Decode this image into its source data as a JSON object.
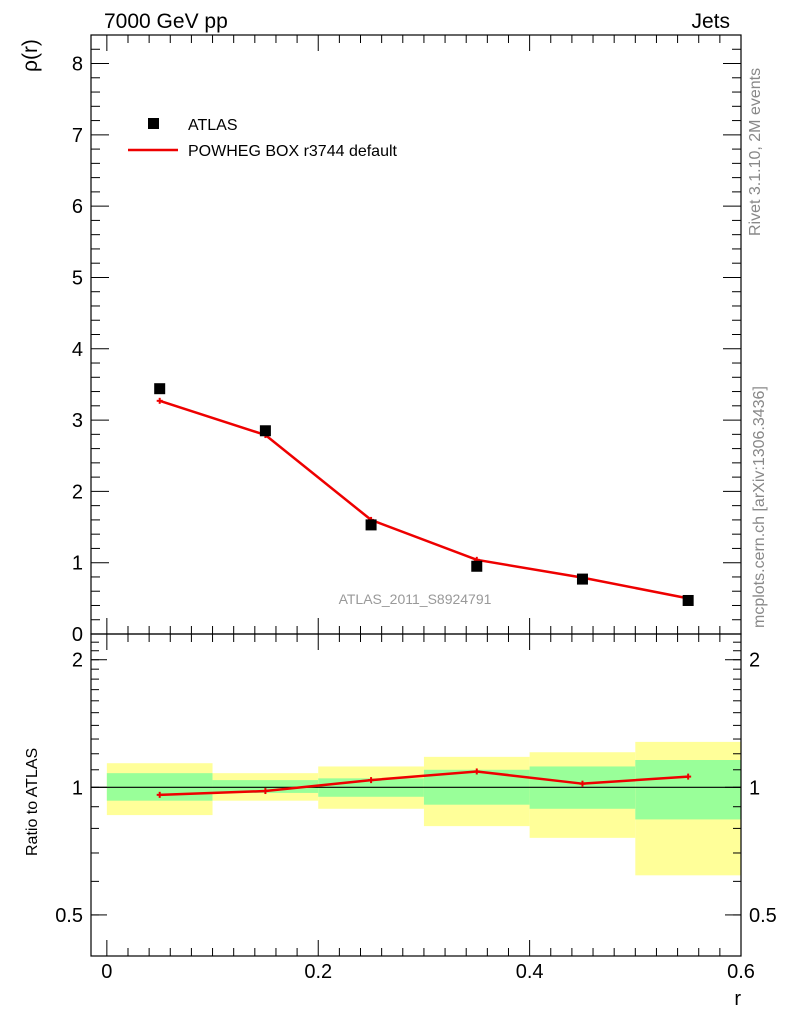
{
  "header": {
    "left_title": "7000 GeV pp",
    "right_title": "Jets"
  },
  "side_text": {
    "rivet": "Rivet 3.1.10,  2M events",
    "mcplots": "mcplots.cern.ch [arXiv:1306.3436]"
  },
  "analysis_label": "ATLAS_2011_S8924791",
  "chart_data": [
    {
      "type": "scatter",
      "panel": "main",
      "ylabel": "ρ(r)",
      "xlim": [
        -0.015,
        0.6
      ],
      "ylim": [
        0,
        8.4
      ],
      "y_ticks": [
        0,
        1,
        2,
        3,
        4,
        5,
        6,
        7,
        8
      ],
      "legend_placement": "top-left",
      "series": [
        {
          "name": "ATLAS",
          "style": "markers",
          "color": "#000000",
          "x": [
            0.05,
            0.15,
            0.25,
            0.35,
            0.45,
            0.55
          ],
          "y": [
            3.44,
            2.85,
            1.53,
            0.95,
            0.77,
            0.47
          ]
        },
        {
          "name": "POWHEG BOX r3744 default",
          "style": "line",
          "color": "#ee0000",
          "x": [
            0.05,
            0.15,
            0.25,
            0.35,
            0.45,
            0.55
          ],
          "y": [
            3.27,
            2.79,
            1.6,
            1.04,
            0.79,
            0.5
          ]
        }
      ]
    },
    {
      "type": "line",
      "panel": "ratio",
      "xlabel": "r",
      "ylabel": "Ratio to ATLAS",
      "xlim": [
        -0.015,
        0.6
      ],
      "ylim": [
        0.4,
        2.3
      ],
      "log_y": true,
      "x_ticks": [
        0,
        0.2,
        0.4,
        0.6
      ],
      "y_tick_labels": [
        0.5,
        1,
        2
      ],
      "reference_line": 1,
      "band_colors": {
        "outer": "#ffff99",
        "inner": "#99ff99"
      },
      "bands": {
        "x_edges": [
          0,
          0.1,
          0.2,
          0.3,
          0.4,
          0.5,
          0.6
        ],
        "inner_lo": [
          0.93,
          0.97,
          0.95,
          0.91,
          0.89,
          0.84
        ],
        "inner_hi": [
          1.08,
          1.04,
          1.05,
          1.1,
          1.12,
          1.16
        ],
        "outer_lo": [
          0.86,
          0.93,
          0.89,
          0.81,
          0.76,
          0.62
        ],
        "outer_hi": [
          1.14,
          1.08,
          1.12,
          1.18,
          1.21,
          1.28
        ]
      },
      "series": [
        {
          "name": "POWHEG BOX r3744 default",
          "color": "#ee0000",
          "x": [
            0.05,
            0.15,
            0.25,
            0.35,
            0.45,
            0.55
          ],
          "y": [
            0.96,
            0.98,
            1.04,
            1.09,
            1.02,
            1.06
          ]
        }
      ]
    }
  ]
}
